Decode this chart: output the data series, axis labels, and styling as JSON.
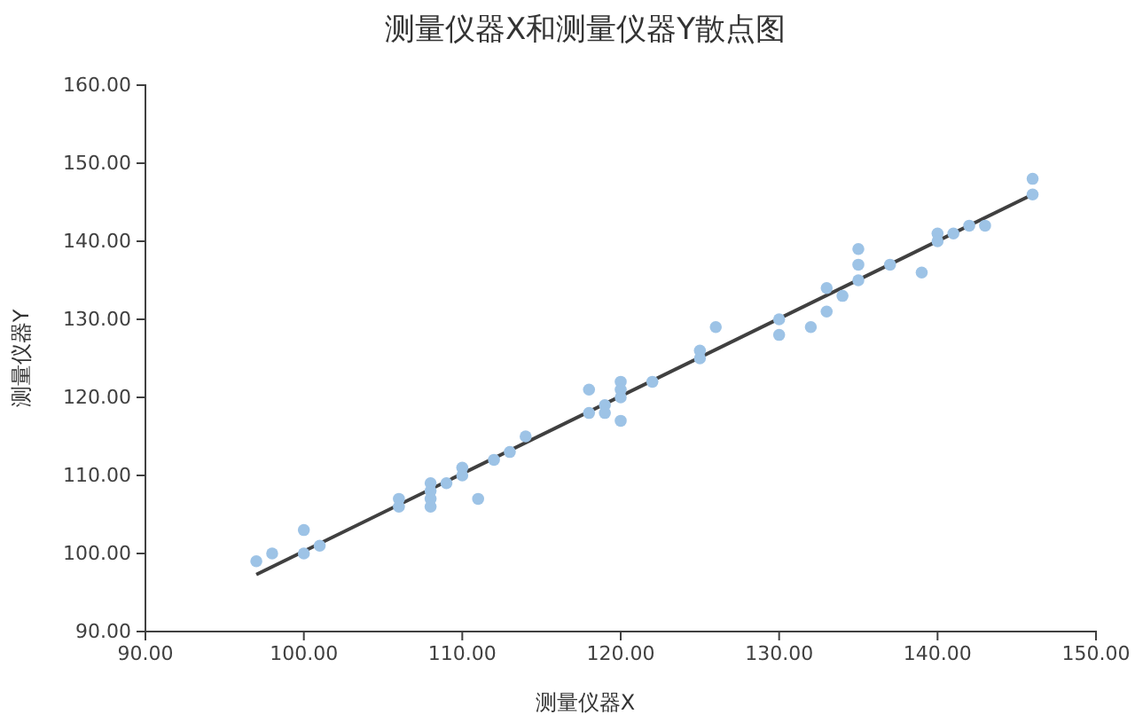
{
  "chart_data": {
    "type": "scatter",
    "title": "测量仪器X和测量仪器Y散点图",
    "xlabel": "测量仪器X",
    "ylabel": "测量仪器Y",
    "xlim": [
      90,
      150
    ],
    "ylim": [
      90,
      160
    ],
    "xticks": [
      {
        "value": 90,
        "label": "90.00"
      },
      {
        "value": 100,
        "label": "100.00"
      },
      {
        "value": 110,
        "label": "110.00"
      },
      {
        "value": 120,
        "label": "120.00"
      },
      {
        "value": 130,
        "label": "130.00"
      },
      {
        "value": 140,
        "label": "140.00"
      },
      {
        "value": 150,
        "label": "150.00"
      }
    ],
    "yticks": [
      {
        "value": 90,
        "label": "90.00"
      },
      {
        "value": 100,
        "label": "100.00"
      },
      {
        "value": 110,
        "label": "110.00"
      },
      {
        "value": 120,
        "label": "120.00"
      },
      {
        "value": 130,
        "label": "130.00"
      },
      {
        "value": 140,
        "label": "140.00"
      },
      {
        "value": 150,
        "label": "150.00"
      },
      {
        "value": 160,
        "label": "160.00"
      }
    ],
    "grid": false,
    "series": [
      {
        "marker": "circle",
        "color": "#9dc3e6",
        "x": [
          97,
          98,
          100,
          100,
          101,
          106,
          106,
          108,
          108,
          108,
          108,
          109,
          110,
          110,
          111,
          112,
          113,
          114,
          118,
          118,
          119,
          119,
          120,
          120,
          120,
          120,
          122,
          125,
          125,
          126,
          130,
          130,
          132,
          133,
          133,
          134,
          135,
          135,
          135,
          137,
          139,
          140,
          140,
          141,
          142,
          143,
          146,
          146
        ],
        "values": [
          99,
          100,
          103,
          100,
          101,
          107,
          106,
          109,
          108,
          107,
          106,
          109,
          111,
          110,
          107,
          112,
          113,
          115,
          121,
          118,
          119,
          118,
          122,
          121,
          120,
          117,
          122,
          126,
          125,
          129,
          130,
          128,
          129,
          134,
          131,
          133,
          139,
          137,
          135,
          137,
          136,
          141,
          140,
          141,
          142,
          142,
          148,
          146
        ]
      },
      {
        "type": "line",
        "color": "#404040",
        "line_style": "solid",
        "x": [
          97,
          146
        ],
        "values": [
          97.3,
          146
        ]
      }
    ]
  }
}
